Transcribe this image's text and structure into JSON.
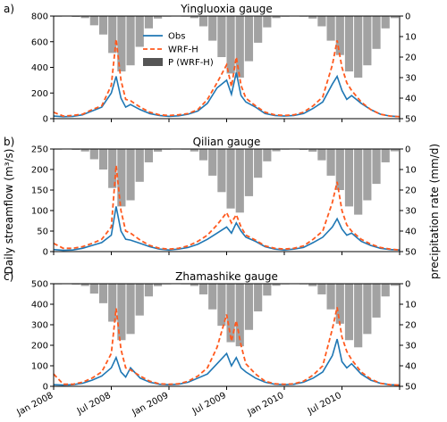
{
  "figure": {
    "ylabel_left": "Daily streamflow (m³/s)",
    "ylabel_right": "precipitation rate (mm/d)",
    "x_tick_labels": [
      "Jan 2008",
      "Jul 2008",
      "Jan 2009",
      "Jul 2009",
      "Jan 2010",
      "Jul 2010"
    ],
    "legend": {
      "obs": "Obs",
      "wrf": "WRF-H",
      "precip": "P (WRF-H)"
    },
    "colors": {
      "obs": "#1f77b4",
      "wrf": "#ff5a1f",
      "precip": "#555555"
    }
  },
  "chart_data": [
    {
      "type": "line",
      "letter": "a)",
      "title": "Yingluoxia gauge",
      "ylim": [
        0,
        800
      ],
      "yticks": [
        0,
        200,
        400,
        600,
        800
      ],
      "y2lim": [
        50,
        0
      ],
      "y2ticks": [
        0,
        10,
        20,
        30,
        40,
        50
      ],
      "x_unit": "months since Jan 2008",
      "series": [
        {
          "name": "Obs",
          "x": [
            0,
            1,
            2,
            3,
            4,
            5,
            6,
            6.5,
            7,
            7.5,
            8,
            9,
            10,
            11,
            12,
            13,
            14,
            15,
            16,
            17,
            18,
            18.5,
            19,
            19.5,
            20,
            21,
            22,
            23,
            24,
            25,
            26,
            27,
            28,
            29,
            29.5,
            30,
            30.5,
            31,
            32,
            33,
            34,
            35,
            36
          ],
          "y": [
            20,
            15,
            18,
            30,
            60,
            90,
            200,
            330,
            160,
            90,
            110,
            70,
            40,
            25,
            18,
            22,
            35,
            60,
            120,
            240,
            300,
            190,
            360,
            180,
            130,
            90,
            40,
            25,
            20,
            25,
            40,
            80,
            130,
            270,
            330,
            220,
            150,
            180,
            120,
            70,
            35,
            20,
            15
          ]
        },
        {
          "name": "WRF-H",
          "x": [
            0,
            1,
            2,
            3,
            4,
            5,
            6,
            6.5,
            7,
            7.5,
            8,
            9,
            10,
            11,
            12,
            13,
            14,
            15,
            16,
            17,
            18,
            18.5,
            19,
            19.5,
            20,
            21,
            22,
            23,
            24,
            25,
            26,
            27,
            28,
            29,
            29.5,
            30,
            30.5,
            31,
            32,
            33,
            34,
            35,
            36
          ],
          "y": [
            50,
            20,
            25,
            35,
            70,
            100,
            260,
            620,
            300,
            150,
            140,
            90,
            50,
            30,
            25,
            30,
            40,
            70,
            150,
            280,
            420,
            250,
            480,
            260,
            160,
            100,
            50,
            30,
            25,
            30,
            50,
            100,
            170,
            420,
            610,
            400,
            280,
            220,
            130,
            70,
            35,
            20,
            15
          ]
        }
      ],
      "precip_mm": [
        0.3,
        0.2,
        0.4,
        1.0,
        4.5,
        9.0,
        18.0,
        27.0,
        24.0,
        15.0,
        6.0,
        1.2,
        0.3,
        0.2,
        0.3,
        1.0,
        5.0,
        12.0,
        20.0,
        28.0,
        30.0,
        22.0,
        13.0,
        5.5,
        1.0,
        0.3,
        0.2,
        0.3,
        1.2,
        5.0,
        12.0,
        19.0,
        27.0,
        30.0,
        24.0,
        16.0,
        6.0,
        1.0
      ]
    },
    {
      "type": "line",
      "letter": "b)",
      "title": "Qilian gauge",
      "ylim": [
        0,
        250
      ],
      "yticks": [
        0,
        50,
        100,
        150,
        200,
        250
      ],
      "y2lim": [
        50,
        0
      ],
      "y2ticks": [
        0,
        10,
        20,
        30,
        40,
        50
      ],
      "x_unit": "months since Jan 2008",
      "series": [
        {
          "name": "Obs",
          "x": [
            0,
            1,
            2,
            3,
            4,
            5,
            6,
            6.5,
            7,
            7.5,
            8,
            9,
            10,
            11,
            12,
            13,
            14,
            15,
            16,
            17,
            18,
            18.5,
            19,
            19.5,
            20,
            21,
            22,
            23,
            24,
            25,
            26,
            27,
            28,
            29,
            29.5,
            30,
            30.5,
            31,
            32,
            33,
            34,
            35,
            36
          ],
          "y": [
            5,
            3,
            4,
            8,
            15,
            22,
            40,
            110,
            50,
            30,
            28,
            20,
            12,
            6,
            4,
            6,
            10,
            18,
            30,
            45,
            60,
            45,
            70,
            50,
            35,
            25,
            12,
            6,
            4,
            6,
            10,
            22,
            35,
            60,
            80,
            55,
            40,
            45,
            25,
            15,
            8,
            5,
            4
          ]
        },
        {
          "name": "WRF-H",
          "x": [
            0,
            1,
            2,
            3,
            4,
            5,
            6,
            6.5,
            7,
            7.5,
            8,
            9,
            10,
            11,
            12,
            13,
            14,
            15,
            16,
            17,
            18,
            18.5,
            19,
            19.5,
            20,
            21,
            22,
            23,
            24,
            25,
            26,
            27,
            28,
            29,
            29.5,
            30,
            30.5,
            31,
            32,
            33,
            34,
            35,
            36
          ],
          "y": [
            20,
            8,
            8,
            12,
            20,
            30,
            60,
            210,
            100,
            50,
            45,
            28,
            15,
            8,
            6,
            8,
            14,
            25,
            40,
            65,
            95,
            70,
            90,
            60,
            40,
            28,
            14,
            8,
            6,
            8,
            14,
            30,
            50,
            120,
            170,
            100,
            65,
            50,
            30,
            18,
            10,
            6,
            4
          ]
        }
      ],
      "precip_mm": [
        0.3,
        0.2,
        0.4,
        1.2,
        5.0,
        10.0,
        19.0,
        28.0,
        25.0,
        16.0,
        6.5,
        1.3,
        0.3,
        0.2,
        0.3,
        1.2,
        5.5,
        13.0,
        21.0,
        29.0,
        31.0,
        23.0,
        14.0,
        6.0,
        1.1,
        0.3,
        0.2,
        0.4,
        1.3,
        5.5,
        13.0,
        20.0,
        28.0,
        32.0,
        25.0,
        17.0,
        6.5,
        1.1
      ]
    },
    {
      "type": "line",
      "letter": "c)",
      "title": "Zhamashike gauge",
      "ylim": [
        0,
        500
      ],
      "yticks": [
        0,
        100,
        200,
        300,
        400,
        500
      ],
      "y2lim": [
        50,
        0
      ],
      "y2ticks": [
        0,
        10,
        20,
        30,
        40,
        50
      ],
      "x_unit": "months since Jan 2008",
      "series": [
        {
          "name": "Obs",
          "x": [
            0,
            1,
            2,
            3,
            4,
            5,
            6,
            6.5,
            7,
            7.5,
            8,
            9,
            10,
            11,
            12,
            13,
            14,
            15,
            16,
            17,
            18,
            18.5,
            19,
            19.5,
            20,
            21,
            22,
            23,
            24,
            25,
            26,
            27,
            28,
            29,
            29.5,
            30,
            30.5,
            31,
            32,
            33,
            34,
            35,
            36
          ],
          "y": [
            8,
            6,
            8,
            15,
            30,
            50,
            90,
            140,
            70,
            45,
            90,
            40,
            20,
            10,
            8,
            10,
            20,
            40,
            60,
            110,
            160,
            100,
            140,
            90,
            70,
            40,
            20,
            10,
            8,
            10,
            20,
            40,
            70,
            150,
            230,
            120,
            90,
            110,
            60,
            30,
            15,
            8,
            6
          ]
        },
        {
          "name": "WRF-H",
          "x": [
            0,
            1,
            2,
            3,
            4,
            5,
            6,
            6.5,
            7,
            7.5,
            8,
            9,
            10,
            11,
            12,
            13,
            14,
            15,
            16,
            17,
            18,
            18.5,
            19,
            19.5,
            20,
            21,
            22,
            23,
            24,
            25,
            26,
            27,
            28,
            29,
            29.5,
            30,
            30.5,
            31,
            32,
            33,
            34,
            35,
            36
          ],
          "y": [
            60,
            10,
            10,
            20,
            40,
            70,
            160,
            380,
            180,
            90,
            80,
            50,
            25,
            12,
            10,
            12,
            25,
            50,
            90,
            190,
            350,
            220,
            320,
            200,
            110,
            60,
            25,
            12,
            10,
            12,
            25,
            55,
            100,
            280,
            385,
            240,
            170,
            130,
            70,
            35,
            15,
            8,
            6
          ]
        }
      ],
      "precip_mm": [
        0.3,
        0.2,
        0.4,
        1.1,
        4.8,
        9.5,
        18.5,
        27.5,
        24.5,
        15.5,
        6.2,
        1.2,
        0.3,
        0.2,
        0.3,
        1.1,
        5.2,
        12.5,
        20.5,
        28.5,
        30.5,
        22.5,
        13.5,
        5.8,
        1.0,
        0.3,
        0.2,
        0.3,
        1.2,
        5.2,
        12.5,
        19.5,
        27.5,
        31.0,
        24.5,
        16.5,
        6.2,
        1.0
      ]
    }
  ]
}
